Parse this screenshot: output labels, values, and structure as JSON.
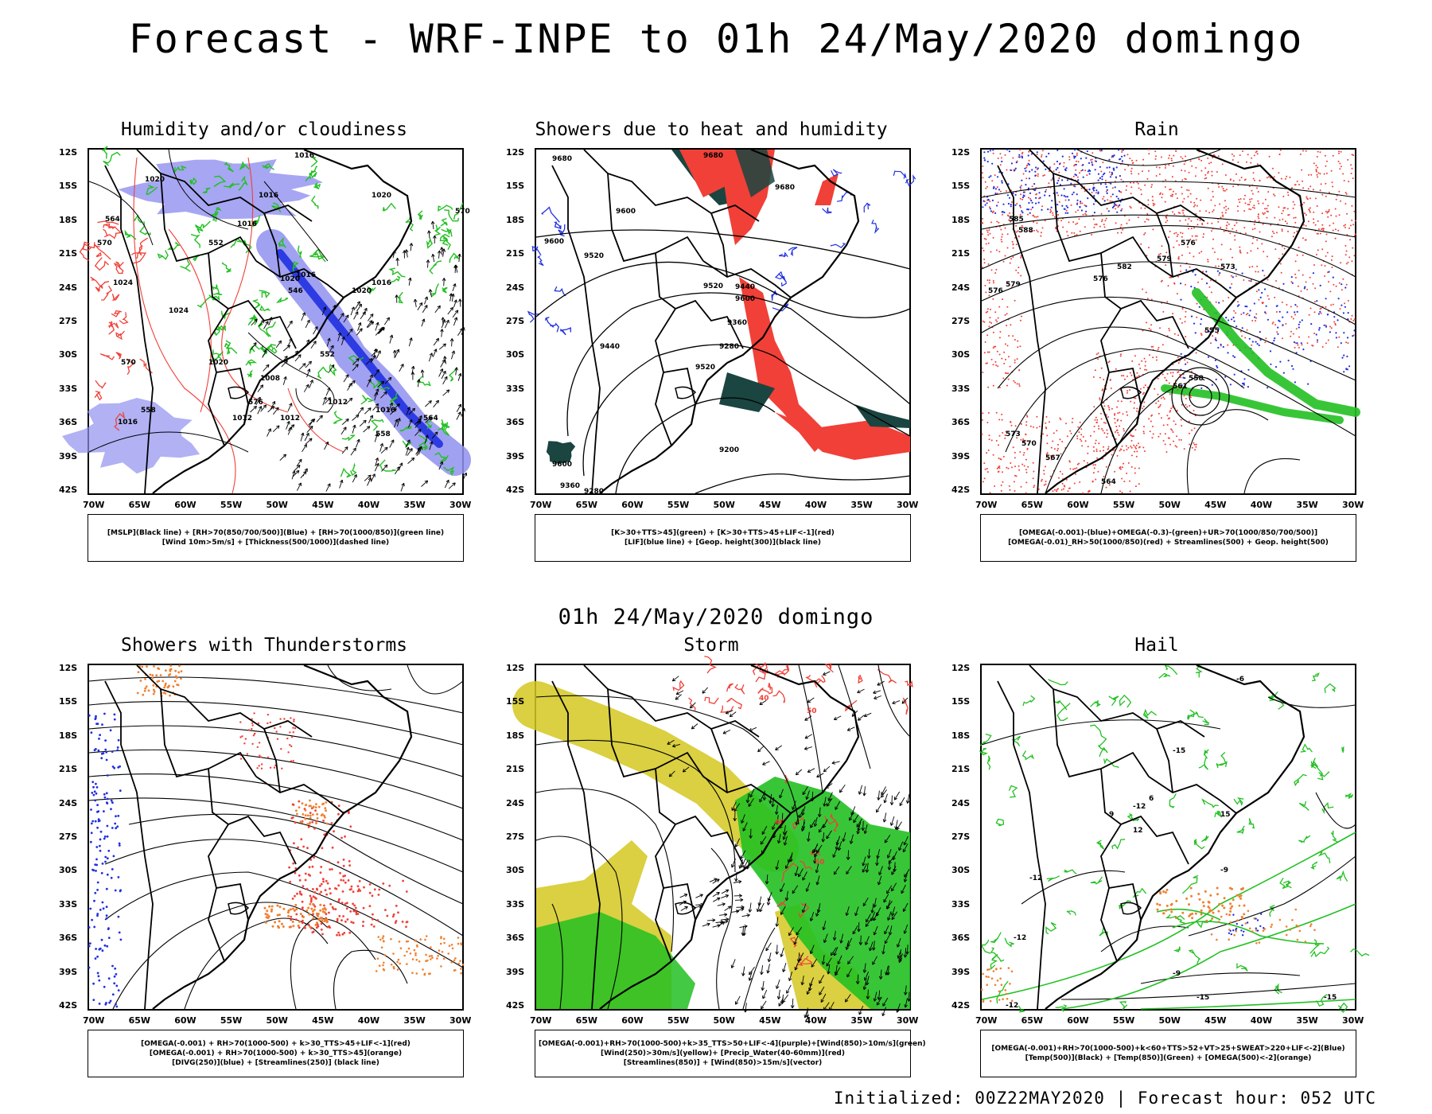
{
  "title": "Forecast - WRF-INPE to 01h 24/May/2020 domingo",
  "subtitle": "01h 24/May/2020 domingo",
  "footer": "Initialized: 00Z22MAY2020 | Forecast hour: 052 UTC",
  "axes": {
    "lat": [
      "12S",
      "15S",
      "18S",
      "21S",
      "24S",
      "27S",
      "30S",
      "33S",
      "36S",
      "39S",
      "42S"
    ],
    "lon": [
      "70W",
      "65W",
      "60W",
      "55W",
      "50W",
      "45W",
      "40W",
      "35W",
      "30W"
    ]
  },
  "colors": {
    "red": "#f04038",
    "green": "#22c022",
    "blue": "#2030e0",
    "purple": "#9090f0",
    "darkgreen": "#1a4540",
    "yellow": "#d4c820",
    "orange": "#f08030"
  },
  "panels": [
    {
      "id": "humidity",
      "title": "Humidity and/or cloudiness",
      "legend": [
        "[MSLP](Black line) + [RH>70(850/700/500)](Blue) + [RH>70(1000/850)](green line)",
        "[Wind 10m>5m/s] + [Thickness(500/1000)](dashed line)"
      ],
      "labels": [
        "1016",
        "1020",
        "1016",
        "1016",
        "1020",
        "1016",
        "1020",
        "1024",
        "1024",
        "1020",
        "1020",
        "1016",
        "1012",
        "1008",
        "1012",
        "1016",
        "1016",
        "1012",
        "570",
        "570",
        "564",
        "558",
        "552",
        "546",
        "552",
        "558",
        "564",
        "570",
        "576"
      ]
    },
    {
      "id": "showers",
      "title": "Showers due to heat and humidity",
      "legend": [
        "[K>30+TTS>45](green) + [K>30+TTS>45+LIF<-1](red)",
        "[LIF](blue line) + [Geop. height(300)](black line)"
      ],
      "labels": [
        "9680",
        "9680",
        "9680",
        "9600",
        "9600",
        "9520",
        "9520",
        "9600",
        "9440",
        "9360",
        "9280",
        "9520",
        "9600",
        "9360",
        "9280",
        "9200",
        "9440"
      ]
    },
    {
      "id": "rain",
      "title": "Rain",
      "legend": [
        "[OMEGA(-0.001)-(blue)+OMEGA(-0.3)-(green)+UR>70(1000/850/700/500)]",
        "[OMEGA(-0.01)_RH>50(1000/850)(red) + Streamlines(500) + Geop. height(500)"
      ],
      "labels": [
        "585",
        "588",
        "579",
        "576",
        "573",
        "570",
        "567",
        "564",
        "561",
        "558",
        "555",
        "573",
        "576",
        "579",
        "582",
        "576"
      ]
    },
    {
      "id": "thunder",
      "title": "Showers with Thunderstorms",
      "legend": [
        "[OMEGA(-0.001) + RH>70(1000-500) + k>30_TTS>45+LIF<-1](red)",
        "[OMEGA(-0.001) + RH>70(1000-500) + k>30_TTS>45](orange)",
        "[DIVG(250)](blue) + [Streamlines(250)] (black line)"
      ],
      "labels": []
    },
    {
      "id": "storm",
      "title": "Storm",
      "legend": [
        "[OMEGA(-0.001)+RH>70(1000-500)+k>35_TTS>50+LIF<-4](purple)+[Wind(850)>10m/s](green)",
        "[Wind(250)>30m/s](yellow)+ [Precip_Water(40-60mm)](red)",
        "[Streamlines(850)] + [Wind(850)>15m/s](vector)"
      ],
      "labels": [
        "40",
        "50",
        "40",
        "50"
      ]
    },
    {
      "id": "hail",
      "title": "Hail",
      "legend": [
        "[OMEGA(-0.001)+RH>70(1000-500)+k<60+TTS>52+VT>25+SWEAT>220+LIF<-2](Blue)",
        "[Temp(500)](Black) + [Temp(850)](Green) + [OMEGA(500)<-2](orange)"
      ],
      "labels": [
        "-15",
        "-12",
        "-12",
        "-9",
        "-12",
        "-15",
        "-6",
        "-9",
        "-12",
        "-15",
        "9",
        "12",
        "15",
        "6"
      ]
    }
  ]
}
